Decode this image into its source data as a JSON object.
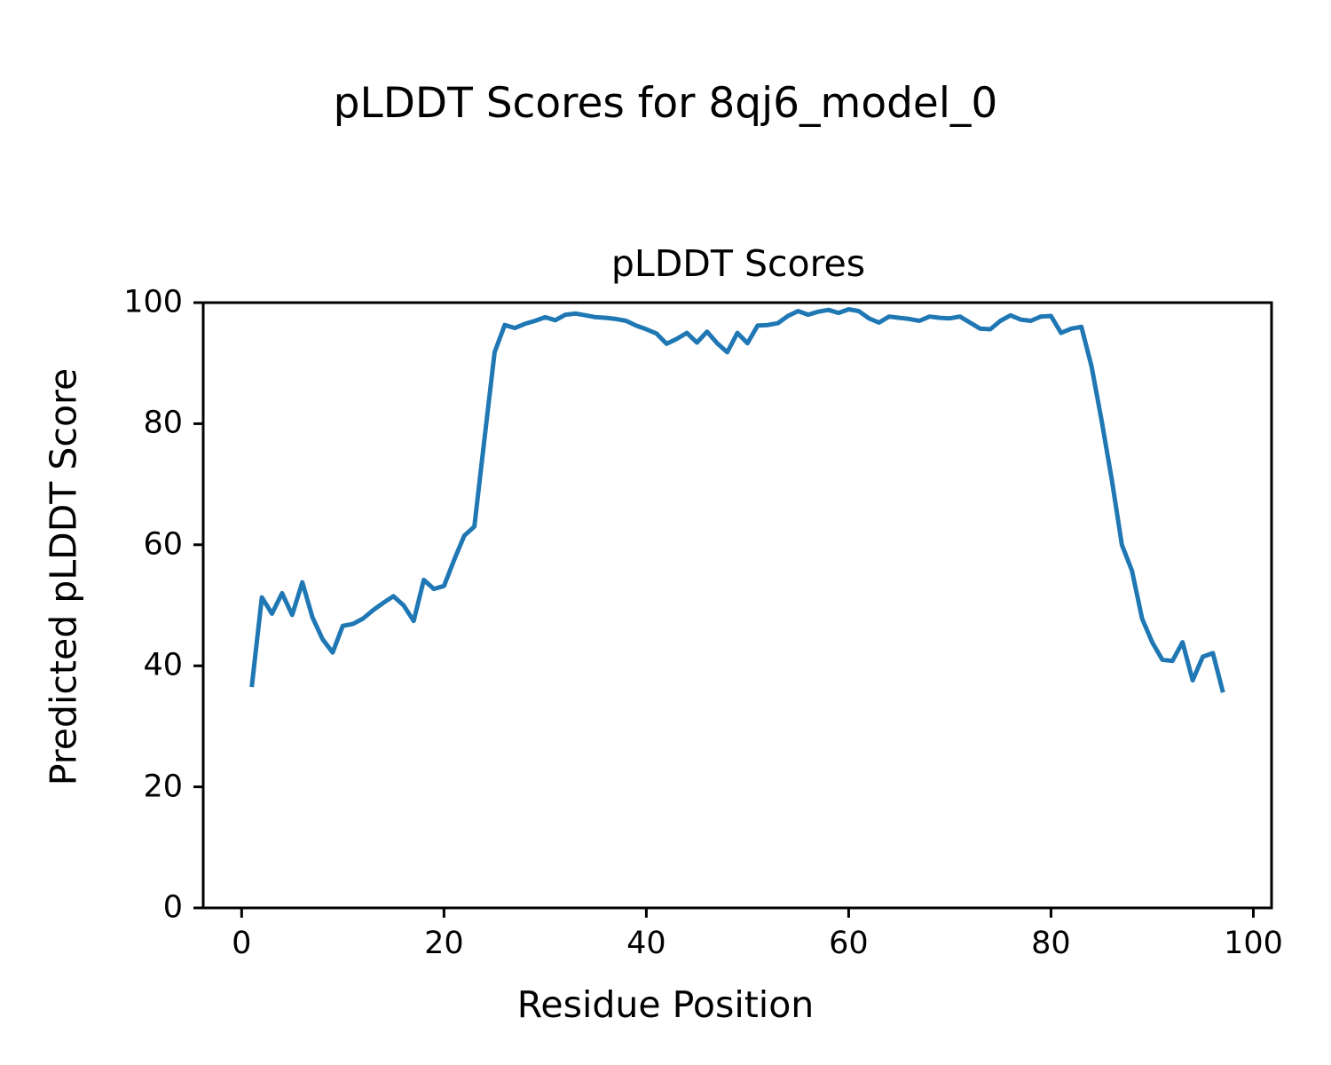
{
  "figure": {
    "suptitle": "pLDDT Scores for 8qj6_model_0",
    "background_color": "#ffffff",
    "text_color": "#000000"
  },
  "chart_data": {
    "type": "line",
    "title": "pLDDT Scores",
    "xlabel": "Residue Position",
    "ylabel": "Predicted pLDDT Score",
    "legend": "none",
    "grid": false,
    "line_color": "#1f77b4",
    "line_width": 5,
    "axis_color": "#000000",
    "xlim": [
      -3.8,
      101.8
    ],
    "ylim": [
      0,
      100
    ],
    "xticks": [
      0,
      20,
      40,
      60,
      80,
      100
    ],
    "yticks": [
      0,
      20,
      40,
      60,
      80,
      100
    ],
    "x": [
      1,
      2,
      3,
      4,
      5,
      6,
      7,
      8,
      9,
      10,
      11,
      12,
      13,
      14,
      15,
      16,
      17,
      18,
      19,
      20,
      21,
      22,
      23,
      24,
      25,
      26,
      27,
      28,
      29,
      30,
      31,
      32,
      33,
      34,
      35,
      36,
      37,
      38,
      39,
      40,
      41,
      42,
      43,
      44,
      45,
      46,
      47,
      48,
      49,
      50,
      51,
      52,
      53,
      54,
      55,
      56,
      57,
      58,
      59,
      60,
      61,
      62,
      63,
      64,
      65,
      66,
      67,
      68,
      69,
      70,
      71,
      72,
      73,
      74,
      75,
      76,
      77,
      78,
      79,
      80,
      81,
      82,
      83,
      84,
      85,
      86,
      87,
      88,
      89,
      90,
      91,
      92,
      93,
      94,
      95,
      96,
      97
    ],
    "values": [
      36.5,
      51.3,
      48.6,
      52.0,
      48.4,
      53.8,
      48.0,
      44.4,
      42.2,
      46.6,
      46.9,
      47.8,
      49.2,
      50.4,
      51.5,
      50.0,
      47.4,
      54.2,
      52.7,
      53.2,
      57.5,
      61.5,
      63.0,
      77.5,
      91.8,
      96.3,
      95.8,
      96.5,
      97.0,
      97.6,
      97.1,
      98.0,
      98.2,
      97.9,
      97.6,
      97.5,
      97.3,
      97.0,
      96.2,
      95.6,
      94.9,
      93.2,
      94.0,
      95.0,
      93.4,
      95.2,
      93.3,
      91.8,
      95.0,
      93.3,
      96.2,
      96.3,
      96.6,
      97.8,
      98.6,
      98.0,
      98.5,
      98.8,
      98.3,
      98.9,
      98.6,
      97.4,
      96.7,
      97.7,
      97.5,
      97.3,
      97.0,
      97.7,
      97.5,
      97.4,
      97.7,
      96.7,
      95.7,
      95.6,
      97.0,
      97.9,
      97.2,
      97.0,
      97.7,
      97.8,
      95.0,
      95.7,
      96.0,
      89.5,
      80.5,
      70.8,
      60.0,
      55.7,
      47.8,
      43.9,
      41.0,
      40.8,
      43.9,
      37.6,
      41.5,
      42.1,
      35.6
    ]
  }
}
